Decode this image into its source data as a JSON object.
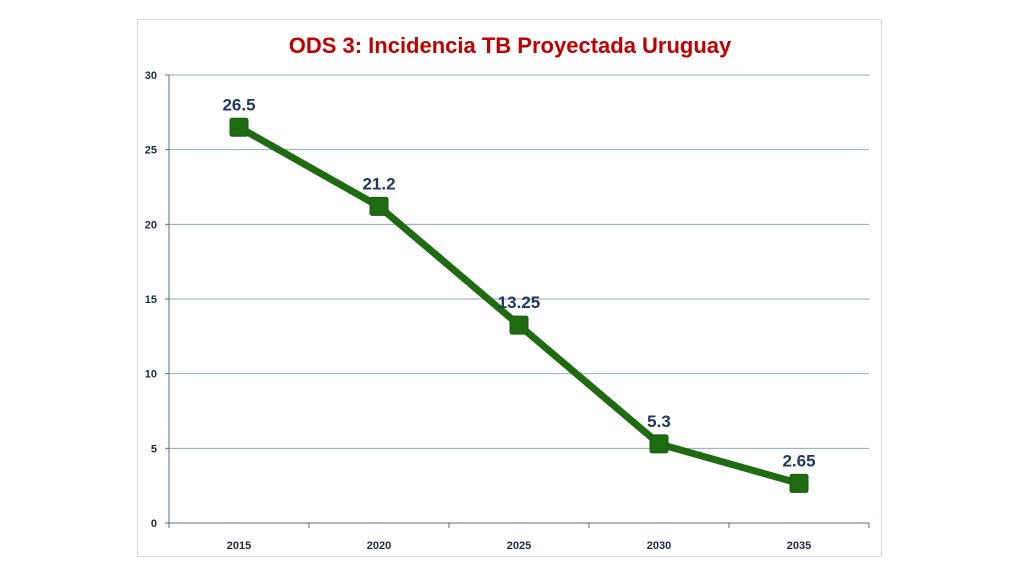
{
  "chart_data": {
    "type": "line",
    "title": "ODS 3: Incidencia TB Proyectada Uruguay",
    "xlabel": "",
    "ylabel": "",
    "categories": [
      "2015",
      "2020",
      "2025",
      "2030",
      "2035"
    ],
    "series": [
      {
        "values": [
          26.5,
          21.2,
          13.25,
          5.3,
          2.65
        ],
        "data_labels": [
          "26.5",
          "21.2",
          "13.25",
          "5.3",
          "2.65"
        ]
      }
    ],
    "ylim": [
      0,
      30
    ],
    "yticks": [
      0,
      5,
      10,
      15,
      20,
      25,
      30
    ],
    "grid": true,
    "legend": "none",
    "colors": {
      "line": "#1e6b12",
      "marker": "#1e6b12",
      "title": "#c00000",
      "data_label": "#1f3864",
      "gridline": "#8ea9c1"
    }
  }
}
